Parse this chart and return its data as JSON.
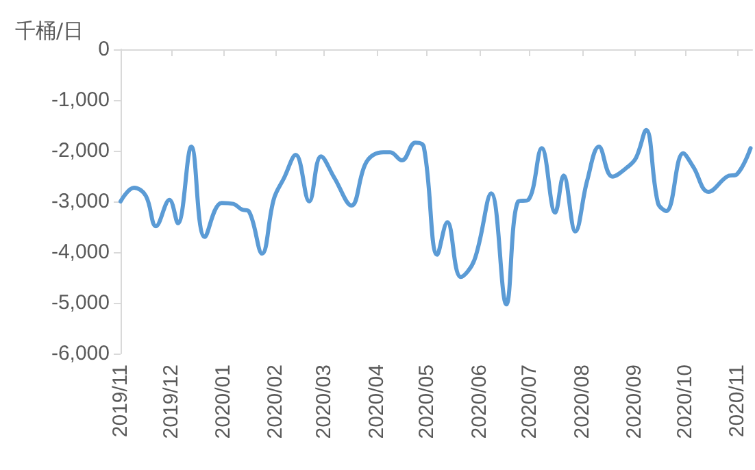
{
  "chart_data": {
    "type": "line",
    "ylabel": "千桶/日",
    "x": [
      "2019-11-01",
      "2019-11-09",
      "2019-11-16",
      "2019-11-22",
      "2019-11-30",
      "2019-12-05",
      "2019-12-13",
      "2019-12-21",
      "2019-12-31",
      "2020-01-07",
      "2020-01-12",
      "2020-01-16",
      "2020-01-24",
      "2020-01-31",
      "2020-02-06",
      "2020-02-13",
      "2020-02-21",
      "2020-02-28",
      "2020-03-07",
      "2020-03-17",
      "2020-03-26",
      "2020-04-05",
      "2020-04-09",
      "2020-04-16",
      "2020-04-24",
      "2020-04-29",
      "2020-05-07",
      "2020-05-13",
      "2020-05-21",
      "2020-05-29",
      "2020-06-08",
      "2020-06-17",
      "2020-06-24",
      "2020-06-30",
      "2020-07-08",
      "2020-07-16",
      "2020-07-21",
      "2020-07-28",
      "2020-08-04",
      "2020-08-11",
      "2020-08-19",
      "2020-08-28",
      "2020-09-02",
      "2020-09-08",
      "2020-09-15",
      "2020-09-20",
      "2020-09-30",
      "2020-10-06",
      "2020-10-15",
      "2020-10-26",
      "2020-11-01",
      "2020-11-09"
    ],
    "series": [
      {
        "color": "#5b9bd5",
        "values": [
          -3000,
          -2730,
          -2890,
          -3490,
          -2970,
          -3430,
          -1920,
          -3700,
          -3030,
          -3050,
          -3160,
          -3190,
          -4030,
          -2950,
          -2540,
          -2080,
          -3000,
          -2110,
          -2540,
          -3080,
          -2220,
          -2030,
          -2030,
          -2190,
          -1840,
          -1920,
          -4050,
          -3410,
          -4490,
          -4160,
          -2840,
          -5030,
          -3000,
          -2970,
          -1950,
          -3220,
          -2490,
          -3590,
          -2590,
          -1920,
          -2510,
          -2320,
          -2140,
          -1590,
          -3030,
          -3190,
          -2050,
          -2320,
          -2810,
          -2510,
          -2460,
          -1950
        ]
      }
    ],
    "xlim": [
      "2019-11-01",
      "2020-11-10"
    ],
    "xticks": [
      {
        "value": "2019-11-01",
        "label": "2019/11"
      },
      {
        "value": "2019-12-01",
        "label": "2019/12"
      },
      {
        "value": "2020-01-01",
        "label": "2020/01"
      },
      {
        "value": "2020-02-01",
        "label": "2020/02"
      },
      {
        "value": "2020-03-01",
        "label": "2020/03"
      },
      {
        "value": "2020-04-01",
        "label": "2020/04"
      },
      {
        "value": "2020-05-01",
        "label": "2020/05"
      },
      {
        "value": "2020-06-01",
        "label": "2020/06"
      },
      {
        "value": "2020-07-01",
        "label": "2020/07"
      },
      {
        "value": "2020-08-01",
        "label": "2020/08"
      },
      {
        "value": "2020-09-01",
        "label": "2020/09"
      },
      {
        "value": "2020-10-01",
        "label": "2020/10"
      },
      {
        "value": "2020-11-01",
        "label": "2020/11"
      }
    ],
    "ylim": [
      -6000,
      0
    ],
    "yticks": [
      {
        "value": -6000,
        "label": "-6,000"
      },
      {
        "value": -5000,
        "label": "-5,000"
      },
      {
        "value": -4000,
        "label": "-4,000"
      },
      {
        "value": -3000,
        "label": "-3,000"
      },
      {
        "value": -2000,
        "label": "-2,000"
      },
      {
        "value": -1000,
        "label": "-1,000"
      },
      0
    ],
    "grid": false,
    "marker": "none",
    "line_style": "solid"
  }
}
